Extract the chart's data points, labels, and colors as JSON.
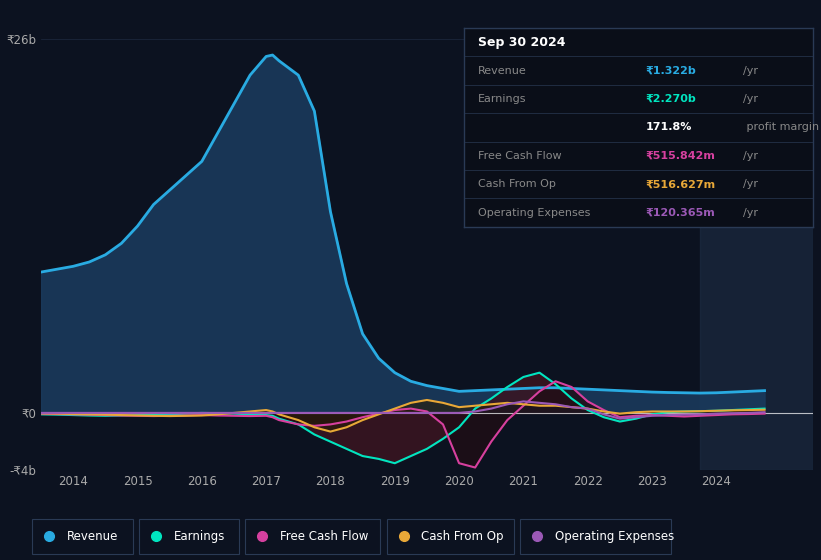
{
  "background_color": "#0c1220",
  "plot_bg_color": "#0c1220",
  "title": "Sep 30 2024",
  "ylim": [
    -4000000000.0,
    26000000000.0
  ],
  "xlim": [
    2013.5,
    2025.5
  ],
  "xticks": [
    2014,
    2015,
    2016,
    2017,
    2018,
    2019,
    2020,
    2021,
    2022,
    2023,
    2024
  ],
  "legend_items": [
    "Revenue",
    "Earnings",
    "Free Cash Flow",
    "Cash From Op",
    "Operating Expenses"
  ],
  "legend_colors": [
    "#29abe2",
    "#00e5c0",
    "#d6409f",
    "#e8a838",
    "#9b59b6"
  ],
  "revenue_color": "#29abe2",
  "earnings_color": "#00e5c0",
  "fcf_color": "#d6409f",
  "cashop_color": "#e8a838",
  "opex_color": "#9b59b6",
  "highlight_x_start": 2023.75,
  "highlight_x_end": 2025.5,
  "years": [
    2013.5,
    2013.75,
    2014.0,
    2014.25,
    2014.5,
    2014.75,
    2015.0,
    2015.25,
    2015.5,
    2015.75,
    2016.0,
    2016.25,
    2016.5,
    2016.75,
    2017.0,
    2017.1,
    2017.2,
    2017.5,
    2017.75,
    2018.0,
    2018.25,
    2018.5,
    2018.75,
    2019.0,
    2019.25,
    2019.5,
    2019.75,
    2020.0,
    2020.25,
    2020.5,
    2020.75,
    2021.0,
    2021.25,
    2021.5,
    2021.75,
    2022.0,
    2022.25,
    2022.5,
    2022.75,
    2023.0,
    2023.25,
    2023.5,
    2023.75,
    2024.0,
    2024.25,
    2024.5,
    2024.75
  ],
  "revenue": [
    9800000000.0,
    10000000000.0,
    10200000000.0,
    10500000000.0,
    11000000000.0,
    11800000000.0,
    13000000000.0,
    14500000000.0,
    15500000000.0,
    16500000000.0,
    17500000000.0,
    19500000000.0,
    21500000000.0,
    23500000000.0,
    24800000000.0,
    24900000000.0,
    24500000000.0,
    23500000000.0,
    21000000000.0,
    14000000000.0,
    9000000000.0,
    5500000000.0,
    3800000000.0,
    2800000000.0,
    2200000000.0,
    1900000000.0,
    1700000000.0,
    1500000000.0,
    1550000000.0,
    1600000000.0,
    1650000000.0,
    1700000000.0,
    1750000000.0,
    1750000000.0,
    1700000000.0,
    1650000000.0,
    1600000000.0,
    1550000000.0,
    1500000000.0,
    1450000000.0,
    1420000000.0,
    1400000000.0,
    1380000000.0,
    1400000000.0,
    1450000000.0,
    1500000000.0,
    1550000000.0
  ],
  "earnings": [
    -100000000.0,
    -120000000.0,
    -150000000.0,
    -180000000.0,
    -200000000.0,
    -180000000.0,
    -150000000.0,
    -120000000.0,
    -100000000.0,
    -50000000.0,
    0.0,
    -20000000.0,
    -50000000.0,
    -100000000.0,
    -150000000.0,
    -200000000.0,
    -400000000.0,
    -800000000.0,
    -1500000000.0,
    -2000000000.0,
    -2500000000.0,
    -3000000000.0,
    -3200000000.0,
    -3500000000.0,
    -3000000000.0,
    -2500000000.0,
    -1800000000.0,
    -1000000000.0,
    300000000.0,
    1000000000.0,
    1800000000.0,
    2500000000.0,
    2800000000.0,
    2000000000.0,
    1000000000.0,
    200000000.0,
    -300000000.0,
    -600000000.0,
    -400000000.0,
    -100000000.0,
    50000000.0,
    100000000.0,
    120000000.0,
    150000000.0,
    200000000.0,
    250000000.0,
    300000000.0
  ],
  "fcf": [
    -50000000.0,
    -80000000.0,
    -100000000.0,
    -120000000.0,
    -150000000.0,
    -180000000.0,
    -200000000.0,
    -220000000.0,
    -200000000.0,
    -180000000.0,
    -150000000.0,
    -180000000.0,
    -200000000.0,
    -220000000.0,
    -200000000.0,
    -300000000.0,
    -500000000.0,
    -800000000.0,
    -900000000.0,
    -800000000.0,
    -600000000.0,
    -300000000.0,
    -50000000.0,
    200000000.0,
    300000000.0,
    100000000.0,
    -800000000.0,
    -3500000000.0,
    -3800000000.0,
    -2000000000.0,
    -500000000.0,
    500000000.0,
    1500000000.0,
    2200000000.0,
    1800000000.0,
    800000000.0,
    200000000.0,
    -300000000.0,
    -200000000.0,
    -150000000.0,
    -200000000.0,
    -250000000.0,
    -200000000.0,
    -150000000.0,
    -100000000.0,
    -80000000.0,
    -50000000.0
  ],
  "cashop": [
    -30000000.0,
    -50000000.0,
    -80000000.0,
    -100000000.0,
    -120000000.0,
    -150000000.0,
    -180000000.0,
    -200000000.0,
    -220000000.0,
    -200000000.0,
    -180000000.0,
    -100000000.0,
    0.0,
    100000000.0,
    200000000.0,
    100000000.0,
    -100000000.0,
    -500000000.0,
    -1000000000.0,
    -1300000000.0,
    -1000000000.0,
    -500000000.0,
    -100000000.0,
    300000000.0,
    700000000.0,
    900000000.0,
    700000000.0,
    400000000.0,
    500000000.0,
    600000000.0,
    700000000.0,
    600000000.0,
    500000000.0,
    500000000.0,
    400000000.0,
    300000000.0,
    100000000.0,
    -50000000.0,
    50000000.0,
    100000000.0,
    100000000.0,
    100000000.0,
    120000000.0,
    150000000.0,
    180000000.0,
    200000000.0,
    220000000.0
  ],
  "opex": [
    0.0,
    0.0,
    0.0,
    0.0,
    0.0,
    0.0,
    0.0,
    0.0,
    0.0,
    0.0,
    0.0,
    0.0,
    0.0,
    0.0,
    0.0,
    0.0,
    0.0,
    0.0,
    0.0,
    0.0,
    0.0,
    0.0,
    0.0,
    0.0,
    0.0,
    0.0,
    0.0,
    0.0,
    100000000.0,
    300000000.0,
    600000000.0,
    800000000.0,
    700000000.0,
    600000000.0,
    400000000.0,
    300000000.0,
    -100000000.0,
    -400000000.0,
    -300000000.0,
    -200000000.0,
    -150000000.0,
    -120000000.0,
    -100000000.0,
    -50000000.0,
    -20000000.0,
    0.0,
    50000000.0
  ]
}
